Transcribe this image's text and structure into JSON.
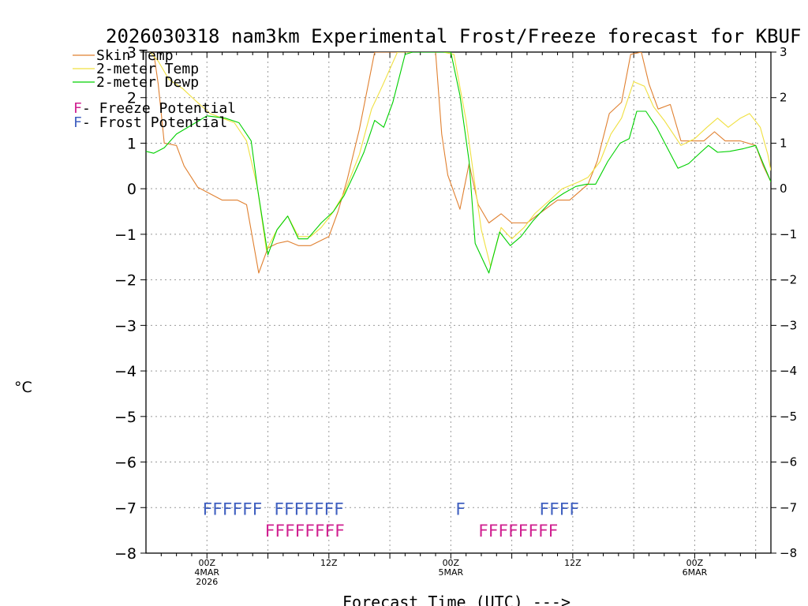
{
  "chart_data": {
    "type": "line",
    "title": "2026030318 nam3km Experimental Frost/Freeze forecast for KBUF",
    "ylabel": "°C",
    "xlabel": "Forecast Time (UTC) --->",
    "ylim": [
      -8,
      3
    ],
    "xlim": [
      -4,
      37
    ],
    "y_ticks": [
      "-8",
      "-7",
      "-6",
      "-5",
      "-4",
      "-3",
      "-2",
      "-1",
      "0",
      "1",
      "2",
      "3"
    ],
    "x_ticks": [
      {
        "x": 0,
        "labels": [
          "00Z",
          "4MAR",
          "2026"
        ]
      },
      {
        "x": 8,
        "labels": [
          "12Z"
        ]
      },
      {
        "x": 16,
        "labels": [
          "00Z",
          "5MAR"
        ]
      },
      {
        "x": 24,
        "labels": [
          "12Z"
        ]
      },
      {
        "x": 32,
        "labels": [
          "00Z",
          "6MAR"
        ]
      }
    ],
    "series": [
      {
        "name": "Skin Temp",
        "color": "#e08030",
        "points": [
          [
            -4,
            3.1
          ],
          [
            -3.5,
            3.0
          ],
          [
            -3.2,
            2.3
          ],
          [
            -2.8,
            1.0
          ],
          [
            -2.0,
            0.95
          ],
          [
            -1.5,
            0.5
          ],
          [
            -0.6,
            0.03
          ],
          [
            1.0,
            -0.25
          ],
          [
            2.0,
            -0.25
          ],
          [
            2.6,
            -0.35
          ],
          [
            3.4,
            -1.85
          ],
          [
            4.0,
            -1.3
          ],
          [
            4.6,
            -1.2
          ],
          [
            5.3,
            -1.15
          ],
          [
            6.0,
            -1.25
          ],
          [
            6.8,
            -1.25
          ],
          [
            8.0,
            -1.05
          ],
          [
            8.6,
            -0.5
          ],
          [
            9.2,
            0.2
          ],
          [
            10.0,
            1.3
          ],
          [
            11.0,
            3.0
          ],
          [
            15.0,
            3.0
          ],
          [
            15.4,
            1.2
          ],
          [
            15.8,
            0.3
          ],
          [
            16.6,
            -0.45
          ],
          [
            17.2,
            0.55
          ],
          [
            17.8,
            -0.35
          ],
          [
            18.5,
            -0.75
          ],
          [
            19.3,
            -0.55
          ],
          [
            20.0,
            -0.75
          ],
          [
            21.0,
            -0.75
          ],
          [
            22.0,
            -0.5
          ],
          [
            23.0,
            -0.25
          ],
          [
            23.8,
            -0.25
          ],
          [
            25.0,
            0.1
          ],
          [
            25.6,
            0.6
          ],
          [
            26.4,
            1.65
          ],
          [
            27.2,
            1.9
          ],
          [
            27.8,
            2.95
          ],
          [
            28.5,
            3.0
          ],
          [
            29.0,
            2.3
          ],
          [
            29.6,
            1.75
          ],
          [
            30.4,
            1.85
          ],
          [
            31.1,
            1.05
          ],
          [
            32.0,
            1.05
          ],
          [
            32.6,
            1.05
          ],
          [
            33.3,
            1.25
          ],
          [
            34.0,
            1.05
          ],
          [
            35.0,
            1.05
          ],
          [
            36.0,
            0.95
          ],
          [
            36.5,
            0.5
          ],
          [
            37.0,
            0.15
          ]
        ]
      },
      {
        "name": "2-meter Temp",
        "color": "#f0e040",
        "points": [
          [
            -4,
            3.1
          ],
          [
            -3.2,
            2.8
          ],
          [
            -2.5,
            2.4
          ],
          [
            -1.6,
            2.2
          ],
          [
            -0.8,
            1.95
          ],
          [
            0.2,
            1.65
          ],
          [
            1.0,
            1.55
          ],
          [
            1.8,
            1.45
          ],
          [
            2.6,
            1.05
          ],
          [
            3.3,
            0.05
          ],
          [
            3.9,
            -1.35
          ],
          [
            4.6,
            -0.9
          ],
          [
            5.3,
            -0.6
          ],
          [
            6.0,
            -1.05
          ],
          [
            6.8,
            -1.05
          ],
          [
            7.5,
            -0.85
          ],
          [
            8.2,
            -0.55
          ],
          [
            9.0,
            -0.1
          ],
          [
            10.0,
            0.75
          ],
          [
            10.8,
            1.75
          ],
          [
            11.5,
            2.25
          ],
          [
            12.5,
            3.0
          ],
          [
            14.5,
            3.0
          ],
          [
            15.5,
            3.0
          ],
          [
            16.2,
            2.95
          ],
          [
            17.0,
            1.5
          ],
          [
            17.6,
            0.05
          ],
          [
            18.0,
            -0.9
          ],
          [
            18.6,
            -1.7
          ],
          [
            19.3,
            -0.85
          ],
          [
            20.0,
            -1.1
          ],
          [
            20.8,
            -0.85
          ],
          [
            21.5,
            -0.55
          ],
          [
            22.5,
            -0.25
          ],
          [
            23.3,
            0.0
          ],
          [
            24.4,
            0.15
          ],
          [
            25.0,
            0.25
          ],
          [
            25.8,
            0.6
          ],
          [
            26.5,
            1.2
          ],
          [
            27.2,
            1.55
          ],
          [
            28.0,
            2.35
          ],
          [
            28.7,
            2.25
          ],
          [
            29.3,
            1.8
          ],
          [
            30.0,
            1.5
          ],
          [
            31.1,
            0.95
          ],
          [
            32.0,
            1.1
          ],
          [
            32.8,
            1.35
          ],
          [
            33.5,
            1.55
          ],
          [
            34.2,
            1.35
          ],
          [
            35.0,
            1.55
          ],
          [
            35.6,
            1.65
          ],
          [
            36.3,
            1.35
          ],
          [
            36.8,
            0.75
          ],
          [
            37.0,
            0.4
          ]
        ]
      },
      {
        "name": "2-meter Dewp",
        "color": "#00d000",
        "points": [
          [
            -4,
            0.82
          ],
          [
            -3.5,
            0.78
          ],
          [
            -2.8,
            0.9
          ],
          [
            -2.0,
            1.2
          ],
          [
            -1.0,
            1.4
          ],
          [
            0.0,
            1.6
          ],
          [
            1.2,
            1.55
          ],
          [
            2.1,
            1.45
          ],
          [
            2.9,
            1.05
          ],
          [
            3.3,
            0.05
          ],
          [
            4.0,
            -1.45
          ],
          [
            4.6,
            -0.9
          ],
          [
            5.3,
            -0.6
          ],
          [
            6.0,
            -1.1
          ],
          [
            6.6,
            -1.1
          ],
          [
            7.5,
            -0.75
          ],
          [
            8.3,
            -0.5
          ],
          [
            9.0,
            -0.15
          ],
          [
            9.7,
            0.35
          ],
          [
            10.3,
            0.8
          ],
          [
            11.0,
            1.5
          ],
          [
            11.6,
            1.35
          ],
          [
            12.2,
            1.9
          ],
          [
            13.0,
            2.95
          ],
          [
            13.5,
            3.0
          ],
          [
            16.0,
            3.0
          ],
          [
            16.6,
            2.05
          ],
          [
            17.2,
            0.6
          ],
          [
            17.6,
            -1.2
          ],
          [
            18.5,
            -1.85
          ],
          [
            19.2,
            -0.95
          ],
          [
            19.9,
            -1.25
          ],
          [
            20.6,
            -1.05
          ],
          [
            21.4,
            -0.7
          ],
          [
            22.5,
            -0.3
          ],
          [
            23.4,
            -0.1
          ],
          [
            24.2,
            0.05
          ],
          [
            24.9,
            0.1
          ],
          [
            25.5,
            0.1
          ],
          [
            26.3,
            0.6
          ],
          [
            27.1,
            1.0
          ],
          [
            27.7,
            1.1
          ],
          [
            28.2,
            1.7
          ],
          [
            28.8,
            1.7
          ],
          [
            29.5,
            1.35
          ],
          [
            30.2,
            0.9
          ],
          [
            30.9,
            0.45
          ],
          [
            31.6,
            0.55
          ],
          [
            32.4,
            0.8
          ],
          [
            32.9,
            0.95
          ],
          [
            33.5,
            0.8
          ],
          [
            34.3,
            0.82
          ],
          [
            35.2,
            0.88
          ],
          [
            36.0,
            0.95
          ],
          [
            36.5,
            0.55
          ],
          [
            37.0,
            0.15
          ]
        ]
      }
    ],
    "legend": {
      "position": "top-left",
      "series_labels": [
        "Skin Temp",
        "2-meter Temp",
        "2-meter Dewp"
      ],
      "potential_labels": [
        {
          "letter": "F",
          "text": " - Freeze Potential",
          "color": "#d02090"
        },
        {
          "letter": "F",
          "text": " - Frost Potential",
          "color": "#4060c0"
        }
      ]
    },
    "frost_marks": {
      "color": "#4060c0",
      "y": -7,
      "runs": [
        {
          "start": -0.3,
          "text": "FFFFFF"
        },
        {
          "start": 4.4,
          "text": "FFFFFFF"
        },
        {
          "start": 16.3,
          "text": "F"
        },
        {
          "start": 21.8,
          "text": "FFFF"
        }
      ]
    },
    "freeze_marks": {
      "color": "#d02090",
      "y": -7.5,
      "runs": [
        {
          "start": 3.8,
          "text": "FFFFFFFF"
        },
        {
          "start": 17.8,
          "text": "FFFFFFFF"
        }
      ]
    }
  }
}
